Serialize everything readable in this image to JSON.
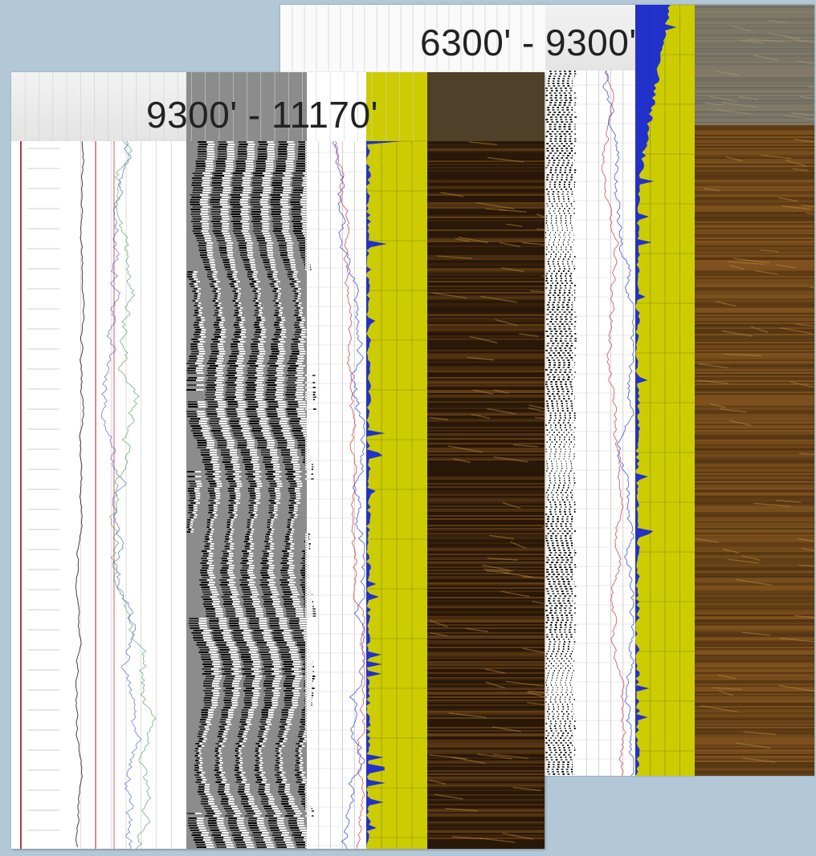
{
  "panels": {
    "back": {
      "range_label": "6300' - 9300'"
    },
    "front": {
      "range_label": "9300' - 11170'"
    }
  },
  "colors": {
    "background": "#b3c8d6",
    "track_yellow": "#cccc00",
    "image_log_dark": "#2a1808",
    "image_log_light": "#8a5a22",
    "curve_red": "#d8434a",
    "curve_blue": "#3b4fd6",
    "curve_green": "#3a9a4a",
    "porosity_blue": "#1020e0"
  },
  "tracks": [
    "depth-track",
    "gamma-ray-track",
    "resistivity-track",
    "waveform-track",
    "velocity-track",
    "porosity-track",
    "borehole-image-track"
  ]
}
